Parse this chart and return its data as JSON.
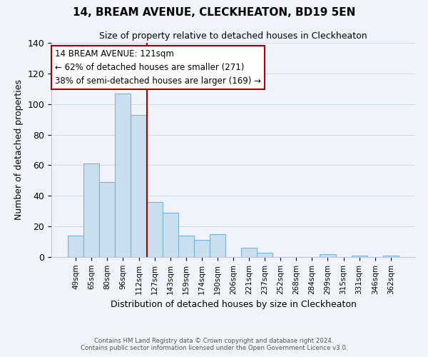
{
  "title": "14, BREAM AVENUE, CLECKHEATON, BD19 5EN",
  "subtitle": "Size of property relative to detached houses in Cleckheaton",
  "xlabel": "Distribution of detached houses by size in Cleckheaton",
  "ylabel": "Number of detached properties",
  "bar_labels": [
    "49sqm",
    "65sqm",
    "80sqm",
    "96sqm",
    "112sqm",
    "127sqm",
    "143sqm",
    "159sqm",
    "174sqm",
    "190sqm",
    "206sqm",
    "221sqm",
    "237sqm",
    "252sqm",
    "268sqm",
    "284sqm",
    "299sqm",
    "315sqm",
    "331sqm",
    "346sqm",
    "362sqm"
  ],
  "bar_values": [
    14,
    61,
    49,
    107,
    93,
    36,
    29,
    14,
    11,
    15,
    0,
    6,
    3,
    0,
    0,
    0,
    2,
    0,
    1,
    0,
    1
  ],
  "bar_color": "#c9dff0",
  "bar_edge_color": "#7ab3d3",
  "vline_x": 4.5,
  "vline_color": "#aa0000",
  "annotation_title": "14 BREAM AVENUE: 121sqm",
  "annotation_line1": "← 62% of detached houses are smaller (271)",
  "annotation_line2": "38% of semi-detached houses are larger (169) →",
  "annotation_box_facecolor": "#ffffff",
  "annotation_box_edgecolor": "#aa0000",
  "ylim": [
    0,
    140
  ],
  "yticks": [
    0,
    20,
    40,
    60,
    80,
    100,
    120,
    140
  ],
  "footer1": "Contains HM Land Registry data © Crown copyright and database right 2024.",
  "footer2": "Contains public sector information licensed under the Open Government Licence v3.0.",
  "background_color": "#f0f4fa",
  "grid_color": "#d0dff0"
}
